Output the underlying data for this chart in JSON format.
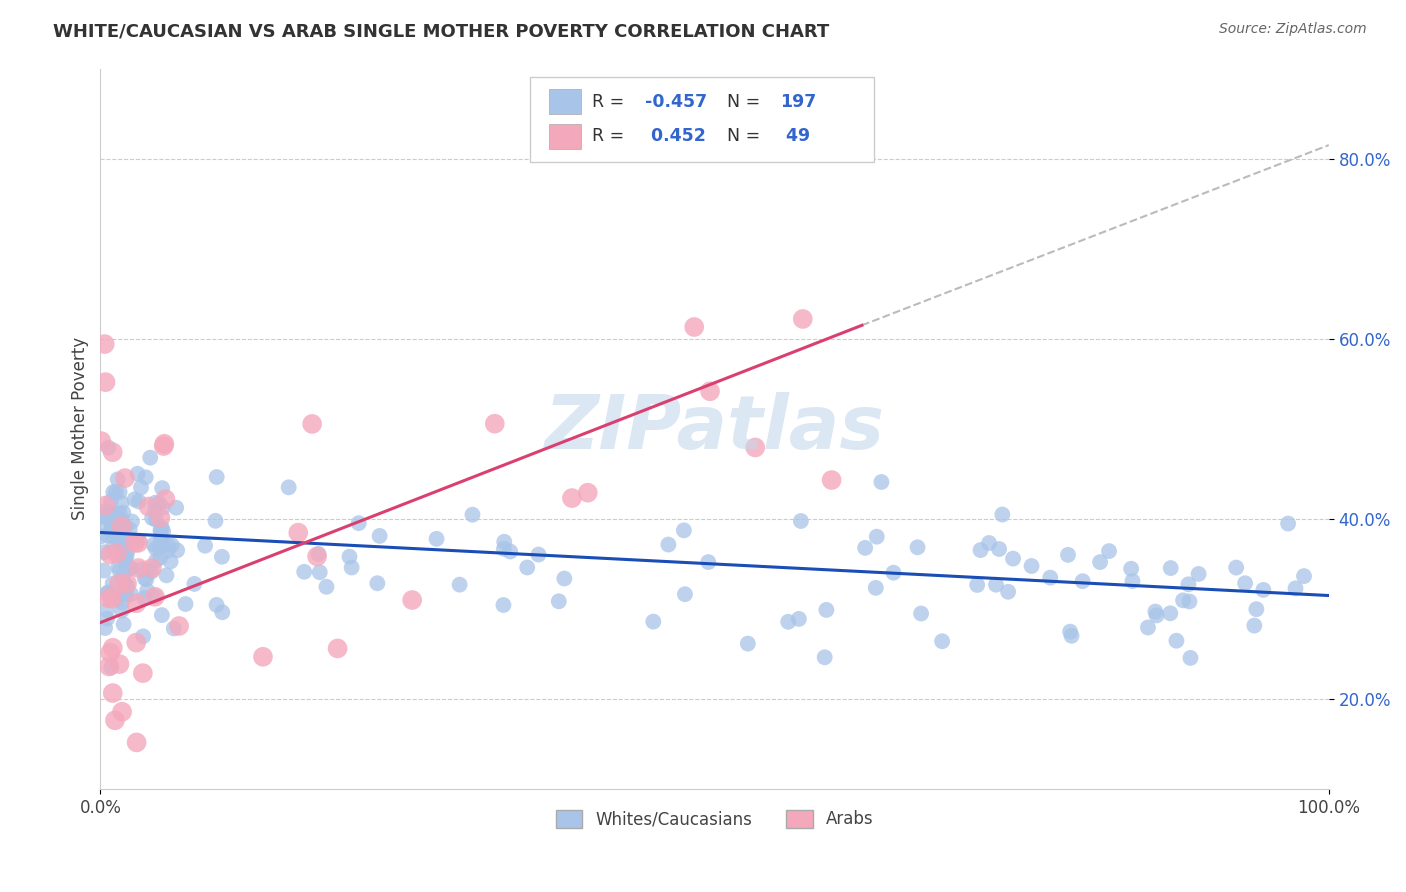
{
  "title": "WHITE/CAUCASIAN VS ARAB SINGLE MOTHER POVERTY CORRELATION CHART",
  "source": "Source: ZipAtlas.com",
  "ylabel": "Single Mother Poverty",
  "blue_R": -0.457,
  "blue_N": 197,
  "pink_R": 0.452,
  "pink_N": 49,
  "blue_color": "#a8c4e8",
  "pink_color": "#f4a8bc",
  "blue_line_color": "#1a4db5",
  "pink_line_color": "#d94070",
  "dashed_line_color": "#bbbbbb",
  "watermark": "ZIPatlas",
  "legend_labels": [
    "Whites/Caucasians",
    "Arabs"
  ],
  "xlim": [
    0.0,
    1.0
  ],
  "ylim": [
    0.1,
    0.9
  ],
  "yticks": [
    0.2,
    0.4,
    0.6,
    0.8
  ],
  "ytick_labels": [
    "20.0%",
    "40.0%",
    "60.0%",
    "80.0%"
  ],
  "xtick_labels": [
    "0.0%",
    "100.0%"
  ],
  "xtick_positions": [
    0.0,
    1.0
  ],
  "background_color": "#ffffff",
  "grid_color": "#cccccc",
  "blue_trend_x": [
    0.0,
    1.0
  ],
  "blue_trend_y": [
    0.385,
    0.315
  ],
  "pink_trend_x": [
    0.0,
    0.62
  ],
  "pink_trend_y": [
    0.285,
    0.615
  ],
  "dash_trend_x": [
    0.62,
    1.0
  ],
  "dash_trend_y": [
    0.615,
    0.815
  ]
}
